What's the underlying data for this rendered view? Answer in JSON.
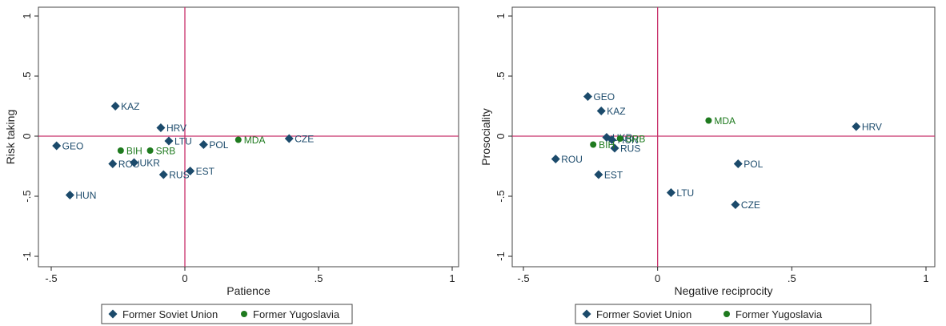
{
  "colors": {
    "soviet": "#1b4a6b",
    "yugo": "#1e7a1e",
    "refline": "#c8306a",
    "axis": "#222222",
    "frame": "#444444"
  },
  "legend": {
    "soviet_label": "Former Soviet Union",
    "yugo_label": "Former Yugoslavia"
  },
  "chart_data": [
    {
      "type": "scatter",
      "xlabel": "Patience",
      "ylabel": "Risk taking",
      "xlim": [
        -0.5,
        1
      ],
      "ylim": [
        -1,
        1
      ],
      "xticks": [
        -0.5,
        0,
        0.5,
        1
      ],
      "xtick_labels": [
        "-.5",
        "0",
        ".5",
        "1"
      ],
      "yticks": [
        -1,
        -0.5,
        0,
        0.5,
        1
      ],
      "ytick_labels": [
        "-1",
        "-.5",
        "0",
        ".5",
        "1"
      ],
      "reference_lines": {
        "x": 0,
        "y": 0
      },
      "legend_position": "bottom",
      "series": [
        {
          "name": "Former Soviet Union",
          "marker": "diamond",
          "points": [
            {
              "label": "GEO",
              "x": -0.48,
              "y": -0.08
            },
            {
              "label": "HUN",
              "x": -0.43,
              "y": -0.49
            },
            {
              "label": "KAZ",
              "x": -0.26,
              "y": 0.25
            },
            {
              "label": "HRV",
              "x": -0.09,
              "y": 0.07
            },
            {
              "label": "LTU",
              "x": -0.06,
              "y": -0.04
            },
            {
              "label": "ROU",
              "x": -0.27,
              "y": -0.23
            },
            {
              "label": "UKR",
              "x": -0.19,
              "y": -0.22
            },
            {
              "label": "RUS",
              "x": -0.08,
              "y": -0.32
            },
            {
              "label": "EST",
              "x": 0.02,
              "y": -0.29
            },
            {
              "label": "POL",
              "x": 0.07,
              "y": -0.07
            },
            {
              "label": "CZE",
              "x": 0.39,
              "y": -0.02
            }
          ]
        },
        {
          "name": "Former Yugoslavia",
          "marker": "circle",
          "points": [
            {
              "label": "BIH",
              "x": -0.24,
              "y": -0.12
            },
            {
              "label": "SRB",
              "x": -0.13,
              "y": -0.12
            },
            {
              "label": "MDA",
              "x": 0.2,
              "y": -0.03
            }
          ]
        }
      ]
    },
    {
      "type": "scatter",
      "xlabel": "Negative reciprocity",
      "ylabel": "Prosociality",
      "xlim": [
        -0.5,
        1
      ],
      "ylim": [
        -1,
        1
      ],
      "xticks": [
        -0.5,
        0,
        0.5,
        1
      ],
      "xtick_labels": [
        "-.5",
        "0",
        ".5",
        "1"
      ],
      "yticks": [
        -1,
        -0.5,
        0,
        0.5,
        1
      ],
      "ytick_labels": [
        "-1",
        "-.5",
        "0",
        ".5",
        "1"
      ],
      "reference_lines": {
        "x": 0,
        "y": 0
      },
      "legend_position": "bottom",
      "series": [
        {
          "name": "Former Soviet Union",
          "marker": "diamond",
          "points": [
            {
              "label": "GEO",
              "x": -0.26,
              "y": 0.33
            },
            {
              "label": "KAZ",
              "x": -0.21,
              "y": 0.21
            },
            {
              "label": "UKR",
              "x": -0.19,
              "y": -0.01
            },
            {
              "label": "HUN",
              "x": -0.17,
              "y": -0.03
            },
            {
              "label": "RUS",
              "x": -0.16,
              "y": -0.1
            },
            {
              "label": "ROU",
              "x": -0.38,
              "y": -0.19
            },
            {
              "label": "EST",
              "x": -0.22,
              "y": -0.32
            },
            {
              "label": "HRV",
              "x": 0.74,
              "y": 0.08
            },
            {
              "label": "POL",
              "x": 0.3,
              "y": -0.23
            },
            {
              "label": "LTU",
              "x": 0.05,
              "y": -0.47
            },
            {
              "label": "CZE",
              "x": 0.29,
              "y": -0.57
            }
          ]
        },
        {
          "name": "Former Yugoslavia",
          "marker": "circle",
          "points": [
            {
              "label": "BIH",
              "x": -0.24,
              "y": -0.07
            },
            {
              "label": "SRB",
              "x": -0.14,
              "y": -0.02
            },
            {
              "label": "MDA",
              "x": 0.19,
              "y": 0.13
            }
          ]
        }
      ]
    }
  ]
}
